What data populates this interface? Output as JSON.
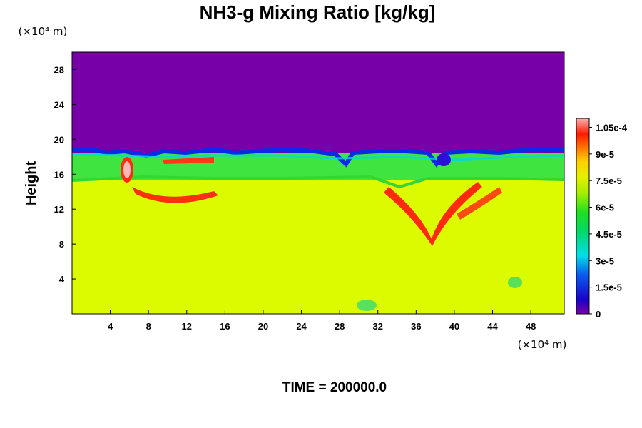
{
  "chart_data": {
    "type": "heatmap",
    "title": "NH3-g Mixing Ratio [kg/kg]",
    "xlabel": "",
    "ylabel": "Height",
    "x_unit": "(×10⁴ m)",
    "y_unit": "(×10⁴ m)",
    "xlim": [
      0,
      51.5
    ],
    "ylim": [
      0,
      30
    ],
    "x_ticks": [
      "4",
      "8",
      "12",
      "16",
      "20",
      "24",
      "28",
      "32",
      "36",
      "40",
      "44",
      "48"
    ],
    "y_ticks": [
      "4",
      "8",
      "12",
      "16",
      "20",
      "24",
      "28"
    ],
    "colorbar": {
      "min": 0,
      "max": 0.00011,
      "tick_labels": [
        "0",
        "1.5e-5",
        "3e-5",
        "4.5e-5",
        "6e-5",
        "7.5e-5",
        "9e-5",
        "1.05e-4"
      ],
      "tick_values": [
        0,
        1.5e-05,
        3e-05,
        4.5e-05,
        6e-05,
        7.5e-05,
        9e-05,
        0.000105
      ]
    },
    "regions": [
      {
        "name": "upper layer",
        "y_range": [
          18.5,
          30
        ],
        "value": 0
      },
      {
        "name": "transition band",
        "y_range": [
          15.5,
          18.5
        ],
        "value": 6e-05
      },
      {
        "name": "lower layer",
        "y_range": [
          0,
          15.5
        ],
        "value": 7.9e-05
      }
    ],
    "features": [
      {
        "x": 5.8,
        "y": 16.5,
        "value": 0.00011
      },
      {
        "x": 9,
        "y": 13.5,
        "value": 0.0001
      },
      {
        "x": 12,
        "y": 17.5,
        "value": 0.0001
      },
      {
        "x": 38,
        "y": 10,
        "value": 0.0001
      },
      {
        "x": 43,
        "y": 13,
        "value": 9.5e-05
      },
      {
        "x": 38.5,
        "y": 17,
        "value": 1e-05
      }
    ],
    "time_label": "TIME = 200000.0"
  }
}
